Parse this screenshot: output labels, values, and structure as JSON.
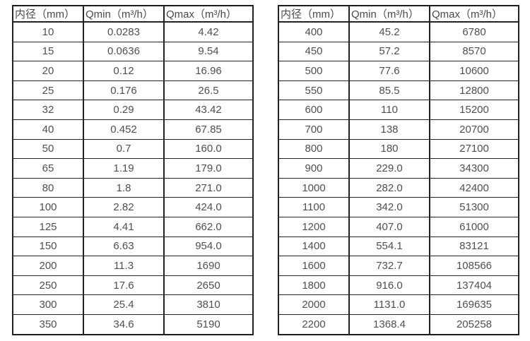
{
  "colors": {
    "background": "#ffffff",
    "border": "#1c1c1c",
    "text": "#4d4d4d"
  },
  "tables": [
    {
      "name": "flow-table-small-diameters",
      "headers": [
        "内径（mm）",
        "Qmin（m³/h）",
        "Qmax（m³/h）"
      ],
      "rows": [
        [
          "10",
          "0.0283",
          "4.42"
        ],
        [
          "15",
          "0.0636",
          "9.54"
        ],
        [
          "20",
          "0.12",
          "16.96"
        ],
        [
          "25",
          "0.176",
          "26.5"
        ],
        [
          "32",
          "0.29",
          "43.42"
        ],
        [
          "40",
          "0.452",
          "67.85"
        ],
        [
          "50",
          "0.7",
          "160.0"
        ],
        [
          "65",
          "1.19",
          "179.0"
        ],
        [
          "80",
          "1.8",
          "271.0"
        ],
        [
          "100",
          "2.82",
          "424.0"
        ],
        [
          "125",
          "4.41",
          "662.0"
        ],
        [
          "150",
          "6.63",
          "954.0"
        ],
        [
          "200",
          "11.3",
          "1690"
        ],
        [
          "250",
          "17.6",
          "2650"
        ],
        [
          "300",
          "25.4",
          "3810"
        ],
        [
          "350",
          "34.6",
          "5190"
        ]
      ]
    },
    {
      "name": "flow-table-large-diameters",
      "headers": [
        "内径（mm）",
        "Qmin（m³/h）",
        "Qmax（m³/h）"
      ],
      "rows": [
        [
          "400",
          "45.2",
          "6780"
        ],
        [
          "450",
          "57.2",
          "8570"
        ],
        [
          "500",
          "77.6",
          "10600"
        ],
        [
          "550",
          "85.5",
          "12800"
        ],
        [
          "600",
          "110",
          "15200"
        ],
        [
          "700",
          "138",
          "20700"
        ],
        [
          "800",
          "180",
          "27100"
        ],
        [
          "900",
          "229.0",
          "34300"
        ],
        [
          "1000",
          "282.0",
          "42400"
        ],
        [
          "1100",
          "342.0",
          "51300"
        ],
        [
          "1200",
          "407.0",
          "61000"
        ],
        [
          "1400",
          "554.1",
          "83121"
        ],
        [
          "1600",
          "732.7",
          "108566"
        ],
        [
          "1800",
          "916.0",
          "137404"
        ],
        [
          "2000",
          "1131.0",
          "169635"
        ],
        [
          "2200",
          "1368.4",
          "205258"
        ]
      ]
    }
  ]
}
